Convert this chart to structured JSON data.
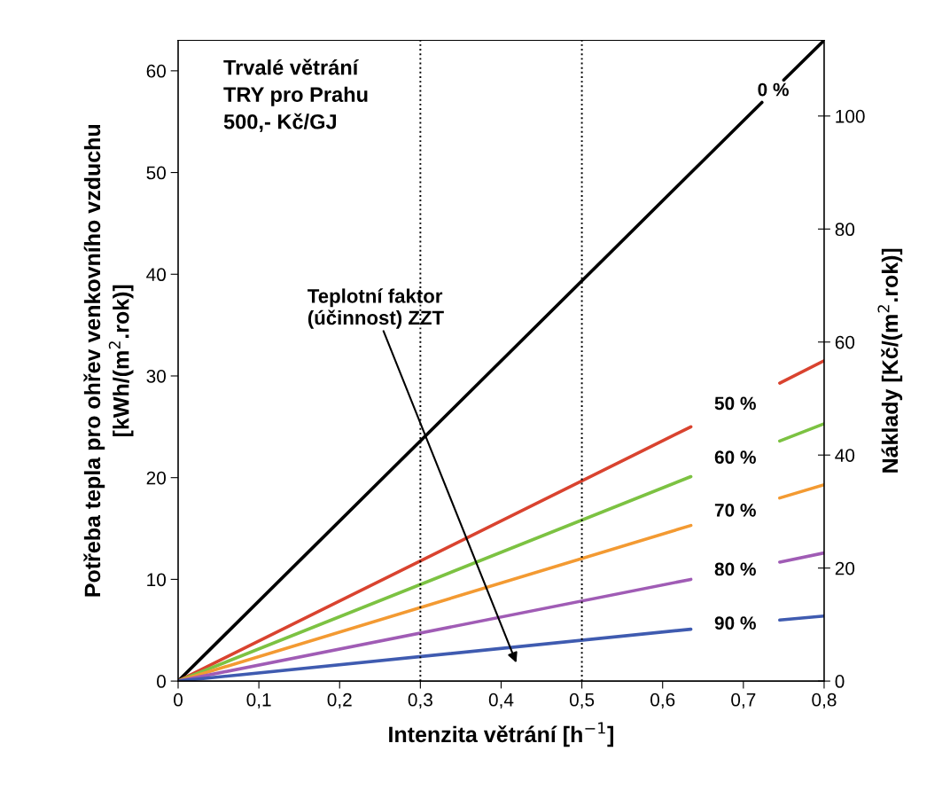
{
  "chart_data": {
    "type": "line",
    "xlabel": "Intenzita větrání [h$^{−1}$]",
    "ylabel": "Potřeba tepla pro ohřev venkovního vzduchu\n[kWh/(m$^{2}$.rok)]",
    "y2label": "Náklady [Kč/(m$^{2}$.rok)]",
    "xlim": [
      0,
      0.8
    ],
    "xticks": [
      0,
      {
        "value": 0.1,
        "label": "0,1"
      },
      {
        "value": 0.2,
        "label": "0,2"
      },
      {
        "value": 0.3,
        "label": "0,3"
      },
      {
        "value": 0.4,
        "label": "0,4"
      },
      {
        "value": 0.5,
        "label": "0,5"
      },
      {
        "value": 0.6,
        "label": "0,6"
      },
      {
        "value": 0.7,
        "label": "0,7"
      },
      {
        "value": 0.8,
        "label": "0,8"
      }
    ],
    "ylim": [
      0,
      63
    ],
    "yticks": [
      0,
      10,
      20,
      30,
      40,
      50,
      60
    ],
    "y2lim": [
      0,
      113.4
    ],
    "y2ticks": [
      0,
      20,
      40,
      60,
      80,
      100
    ],
    "grid": false,
    "legend": false,
    "marker": "none",
    "line_style": "solid",
    "series": [
      {
        "name": "0 %",
        "color": "#000000",
        "x": [
          0,
          0.723,
          0.737,
          0.75,
          0.8
        ],
        "values": [
          0,
          56.9,
          null,
          59.1,
          63
        ]
      },
      {
        "name": "50 %",
        "color": "#d9432f",
        "x": [
          0,
          0.635,
          0.69,
          0.745,
          0.8
        ],
        "values": [
          0,
          25.0,
          null,
          29.3,
          31.5
        ]
      },
      {
        "name": "60 %",
        "color": "#7cc242",
        "x": [
          0,
          0.635,
          0.69,
          0.745,
          0.8
        ],
        "values": [
          0,
          20.1,
          null,
          23.6,
          25.3
        ]
      },
      {
        "name": "70 %",
        "color": "#f39a32",
        "x": [
          0,
          0.635,
          0.69,
          0.745,
          0.8
        ],
        "values": [
          0,
          15.3,
          null,
          18.0,
          19.3
        ]
      },
      {
        "name": "80 %",
        "color": "#a05cb5",
        "x": [
          0,
          0.635,
          0.69,
          0.745,
          0.8
        ],
        "values": [
          0,
          10.0,
          null,
          11.7,
          12.6
        ]
      },
      {
        "name": "90 %",
        "color": "#3f5bb0",
        "x": [
          0,
          0.635,
          0.69,
          0.745,
          0.8
        ],
        "values": [
          0,
          5.1,
          null,
          6.0,
          6.4
        ]
      }
    ],
    "ref_lines": [
      {
        "axis": "x",
        "value": 0.3,
        "color": "#000000",
        "line_style": "dotted"
      },
      {
        "axis": "x",
        "value": 0.5,
        "color": "#000000",
        "line_style": "dotted"
      }
    ],
    "annotations": [
      "Trvalé větrání\nTRY pro Prahu\n500,- Kč/GJ",
      "Teplotní faktor\n(účinnost) ZZT"
    ]
  }
}
